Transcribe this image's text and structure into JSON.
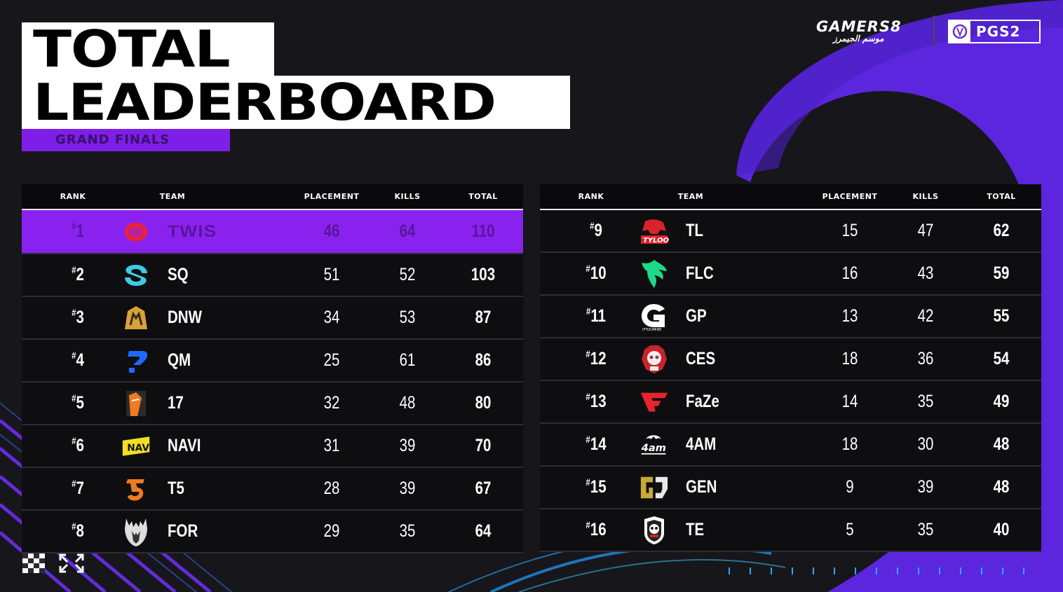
{
  "header": {
    "title_line1": "TOTAL",
    "title_line2": "LEADERBOARD",
    "subtitle": "GRAND FINALS"
  },
  "brand": {
    "gamers_label": "GAMERS8",
    "gamers_arabic": "موسم الجيمرز",
    "pgs_label": "PGS2"
  },
  "columns": {
    "rank": "RANK",
    "team": "TEAM",
    "placement": "PLACEMENT",
    "kills": "KILLS",
    "total": "TOTAL"
  },
  "colors": {
    "accent_purple": "#8a22ef",
    "background": "#17161b",
    "row_bg": "#0e0e11"
  },
  "left_table": [
    {
      "rank": "1",
      "team": "TWIS",
      "placement": "46",
      "kills": "64",
      "total": "110",
      "icon": "twis-logo-icon"
    },
    {
      "rank": "2",
      "team": "SQ",
      "placement": "51",
      "kills": "52",
      "total": "103",
      "icon": "sq-logo-icon"
    },
    {
      "rank": "3",
      "team": "DNW",
      "placement": "34",
      "kills": "53",
      "total": "87",
      "icon": "dnw-logo-icon"
    },
    {
      "rank": "4",
      "team": "QM",
      "placement": "25",
      "kills": "61",
      "total": "86",
      "icon": "qm-logo-icon"
    },
    {
      "rank": "5",
      "team": "17",
      "placement": "32",
      "kills": "48",
      "total": "80",
      "icon": "17-logo-icon"
    },
    {
      "rank": "6",
      "team": "NAVI",
      "placement": "31",
      "kills": "39",
      "total": "70",
      "icon": "navi-logo-icon"
    },
    {
      "rank": "7",
      "team": "T5",
      "placement": "28",
      "kills": "39",
      "total": "67",
      "icon": "t5-logo-icon"
    },
    {
      "rank": "8",
      "team": "FOR",
      "placement": "29",
      "kills": "35",
      "total": "64",
      "icon": "for-logo-icon"
    }
  ],
  "right_table": [
    {
      "rank": "9",
      "team": "TL",
      "placement": "15",
      "kills": "47",
      "total": "62",
      "icon": "tl-logo-icon"
    },
    {
      "rank": "10",
      "team": "FLC",
      "placement": "16",
      "kills": "43",
      "total": "59",
      "icon": "flc-logo-icon"
    },
    {
      "rank": "11",
      "team": "GP",
      "placement": "13",
      "kills": "42",
      "total": "55",
      "icon": "gp-logo-icon"
    },
    {
      "rank": "12",
      "team": "CES",
      "placement": "18",
      "kills": "36",
      "total": "54",
      "icon": "ces-logo-icon"
    },
    {
      "rank": "13",
      "team": "FaZe",
      "placement": "14",
      "kills": "35",
      "total": "49",
      "icon": "faze-logo-icon"
    },
    {
      "rank": "14",
      "team": "4AM",
      "placement": "18",
      "kills": "30",
      "total": "48",
      "icon": "4am-logo-icon"
    },
    {
      "rank": "15",
      "team": "GEN",
      "placement": "9",
      "kills": "39",
      "total": "48",
      "icon": "gen-logo-icon"
    },
    {
      "rank": "16",
      "team": "TE",
      "placement": "5",
      "kills": "35",
      "total": "40",
      "icon": "te-logo-icon"
    }
  ]
}
